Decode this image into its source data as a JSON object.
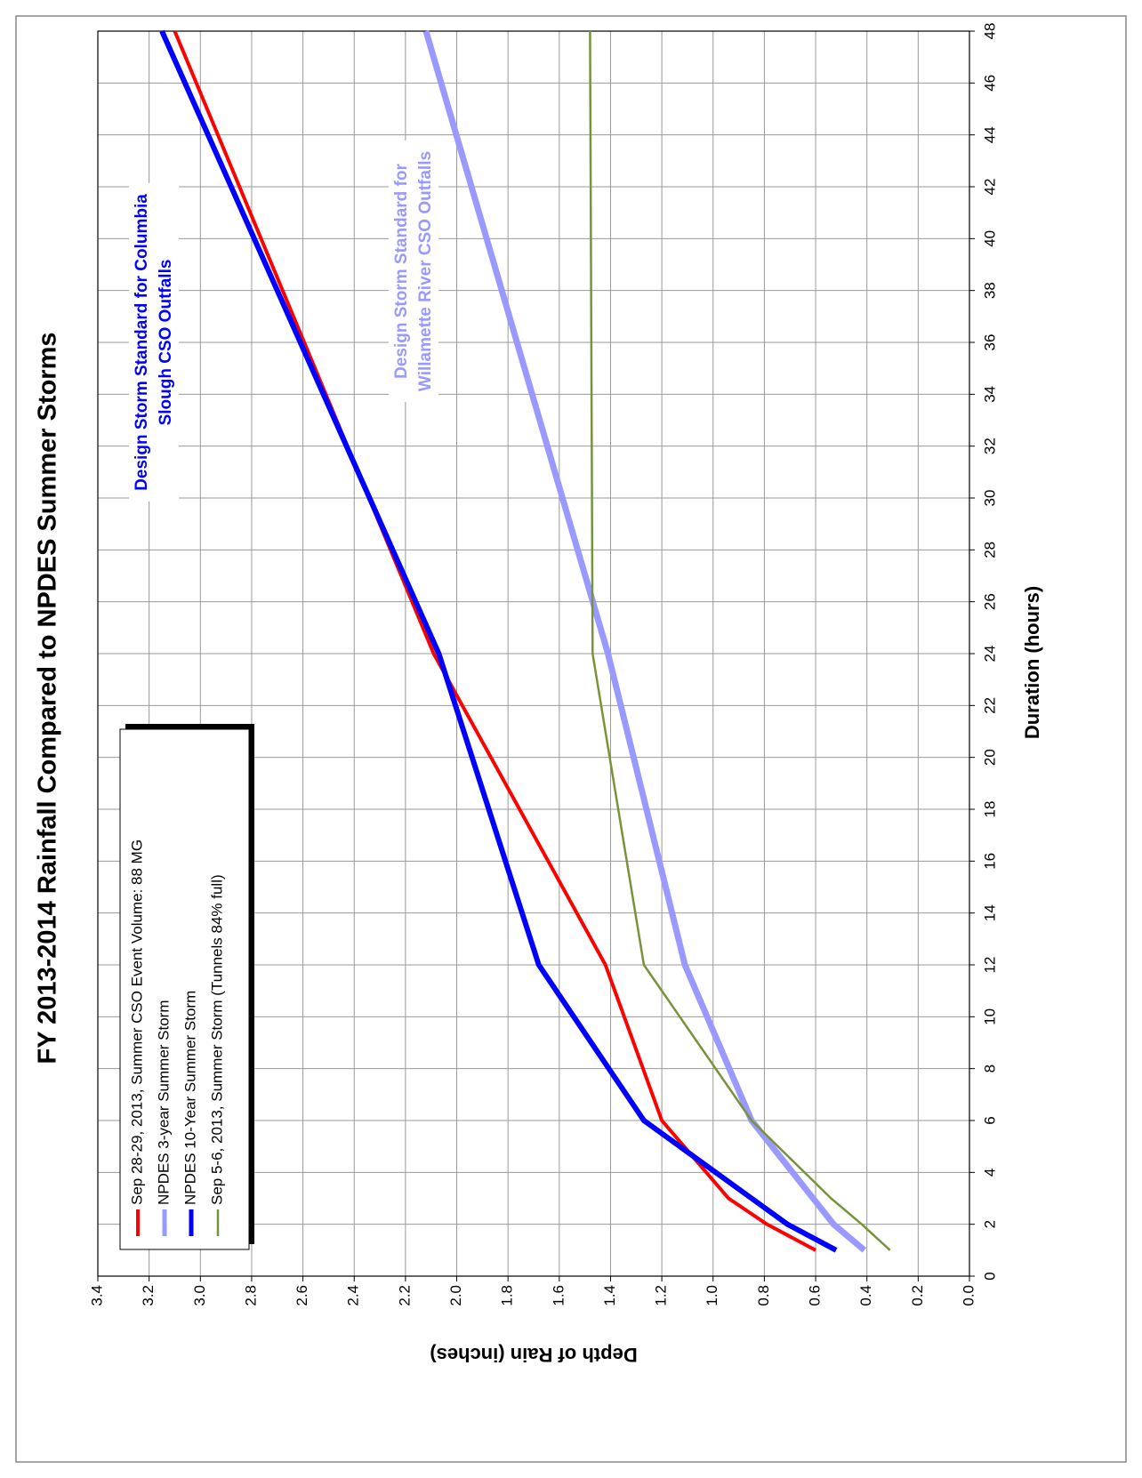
{
  "chart_data": {
    "type": "line",
    "title": "FY 2013-2014 Rainfall Compared to NPDES Summer Storms",
    "x_label": "Duration (hours)",
    "y_label": "Depth of Rain (inches)",
    "x": [
      1,
      2,
      3,
      6,
      12,
      24,
      48
    ],
    "series": [
      {
        "name": "Sep 28-29, 2013, Summer CSO Event Volume: 88 MG",
        "color": "#ff0000",
        "values": [
          0.6,
          0.79,
          0.94,
          1.2,
          1.42,
          2.09,
          3.1
        ]
      },
      {
        "name": "NPDES 3-year Summer Storm",
        "color": "#9999ff",
        "values": [
          0.41,
          0.53,
          0.61,
          0.85,
          1.11,
          1.41,
          2.12
        ]
      },
      {
        "name": "NPDES 10-Year Summer Storm",
        "color": "#0000ff",
        "values": [
          0.52,
          0.71,
          0.85,
          1.27,
          1.68,
          2.07,
          3.15
        ]
      },
      {
        "name": "Sep 5-6, 2013, Summer Storm (Tunnels 84% full)",
        "color": "#77933c",
        "values": [
          0.31,
          0.42,
          0.54,
          0.85,
          1.27,
          1.47,
          1.48
        ]
      }
    ],
    "annotations": [
      {
        "lines": [
          "Design Storm Standard for Columbia",
          "Slough CSO Outfalls"
        ],
        "color": "#0000ff"
      },
      {
        "lines": [
          "Design Storm Standard for",
          "Willamette River CSO Outfalls"
        ],
        "color": "#9999ff"
      }
    ],
    "xlim": [
      0,
      48
    ],
    "xticks": [
      0,
      2,
      4,
      6,
      8,
      10,
      12,
      14,
      16,
      18,
      20,
      22,
      24,
      26,
      28,
      30,
      32,
      34,
      36,
      38,
      40,
      42,
      44,
      46,
      48
    ],
    "ylim": [
      0,
      3.4
    ],
    "yticks": [
      {
        "value": 0,
        "label": "0.0"
      },
      0.2,
      0.4,
      0.6,
      0.8,
      {
        "value": 1,
        "label": "1.0"
      },
      1.2,
      1.4,
      1.6,
      1.8,
      {
        "value": 2,
        "label": "2.0"
      },
      2.2,
      2.4,
      2.6,
      2.8,
      {
        "value": 3,
        "label": "3.0"
      },
      3.2,
      3.4
    ],
    "grid": true,
    "legend": "upper-left"
  }
}
